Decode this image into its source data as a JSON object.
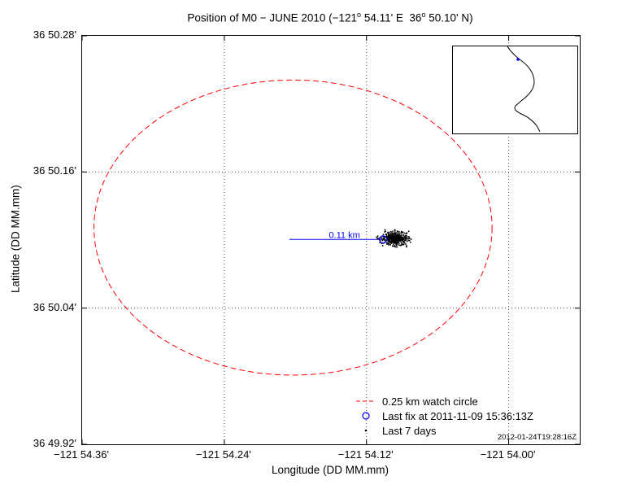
{
  "title": {
    "prefix": "Position of M0 − JUNE 2010 (−121",
    "deg1": "o",
    "mid": " 54.11' E  36",
    "deg2": "o",
    "suffix": " 50.10' N)"
  },
  "chart_data": {
    "type": "scatter",
    "title": "Position of M0 − JUNE 2010 (−121° 54.11' E  36° 50.10' N)",
    "xlabel": "Longitude (DD MM.mm)",
    "ylabel": "Latitude (DD MM.mm)",
    "xlim": [
      -54.36,
      -53.94
    ],
    "ylim": [
      49.92,
      50.28
    ],
    "x_unit": "minutes west of −121°",
    "y_unit": "minutes north of 36°",
    "grid": "dotted",
    "xticks": [
      {
        "value": -54.36,
        "label": "−121 54.36'"
      },
      {
        "value": -54.24,
        "label": "−121 54.24'"
      },
      {
        "value": -54.12,
        "label": "−121 54.12'"
      },
      {
        "value": -54.0,
        "label": "−121 54.00'"
      }
    ],
    "yticks": [
      {
        "value": 50.28,
        "label": "36 50.28'"
      },
      {
        "value": 50.16,
        "label": "36 50.16'"
      },
      {
        "value": 50.04,
        "label": "36 50.04'"
      },
      {
        "value": 49.92,
        "label": "36 49.92'"
      }
    ],
    "watch_circle": {
      "label": "0.25 km watch circle",
      "radius_km": 0.25,
      "center_x": -54.182,
      "center_y": 50.111,
      "rx_minutes": 0.168,
      "ry_minutes": 0.13,
      "color": "#ff0000"
    },
    "last_fix": {
      "label": "Last fix at 2011-11-09 15:36:13Z",
      "time": "2011-11-09 15:36:13Z",
      "x": -54.106,
      "y": 50.1005,
      "color": "#0000ff"
    },
    "distance_line": {
      "label": "0.11 km",
      "distance_km": 0.11,
      "x1": -54.185,
      "y1": 50.1005,
      "x2": -54.106,
      "y2": 50.1005,
      "color": "#0000ff"
    },
    "scatter_cluster": {
      "label": "Last 7 days",
      "center_x": -54.096,
      "center_y": 50.1015,
      "std_x_minutes": 0.0058,
      "std_y_minutes": 0.003,
      "count": 420,
      "color": "#000000"
    },
    "legend": {
      "position": "bottom-right",
      "items": [
        {
          "marker": "red-dashed-line",
          "label": "0.25 km watch circle"
        },
        {
          "marker": "blue-circle",
          "label": "Last fix at 2011-11-09 15:36:13Z"
        },
        {
          "marker": "black-dot",
          "label": "Last 7 days"
        }
      ]
    },
    "timestamp": "2012-01-24T19:28:16Z",
    "inset_map": {
      "region": "Monterey Bay coastline",
      "marker_color": "#0000ff"
    }
  }
}
